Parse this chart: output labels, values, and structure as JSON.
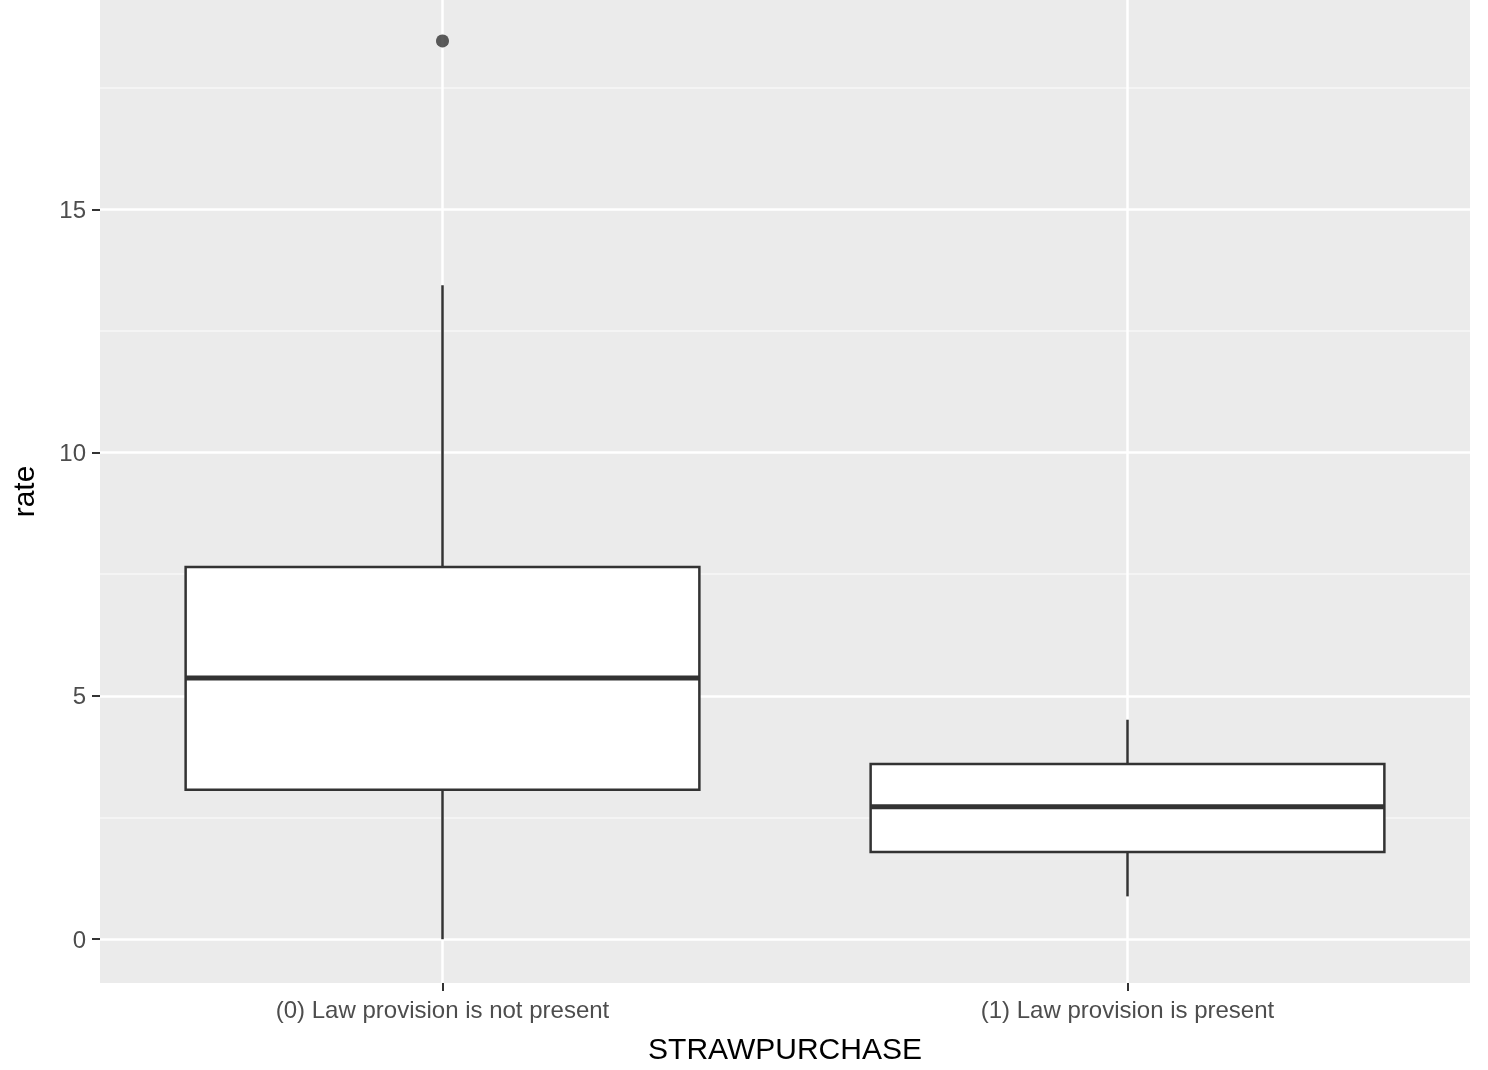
{
  "chart_data": {
    "type": "box",
    "xlabel": "STRAWPURCHASE",
    "ylabel": "rate",
    "categories": [
      "(0) Law provision is not present",
      "(1) Law provision is present"
    ],
    "series": [
      {
        "color": "#333333",
        "boxes": [
          {
            "low": 0,
            "q1": 3.07,
            "median": 5.37,
            "q3": 7.65,
            "high": 13.44
          },
          {
            "low": 0.88,
            "q1": 1.79,
            "median": 2.72,
            "q3": 3.6,
            "high": 4.51
          }
        ]
      },
      {
        "type": "scatter",
        "color": "#333333",
        "marker": "circle",
        "x": [
          "(0) Law provision is not present"
        ],
        "values": [
          18.46
        ]
      }
    ],
    "ylim": [
      -0.9,
      19.3
    ],
    "yticks": [
      0,
      5,
      10,
      15
    ],
    "grid": true
  }
}
